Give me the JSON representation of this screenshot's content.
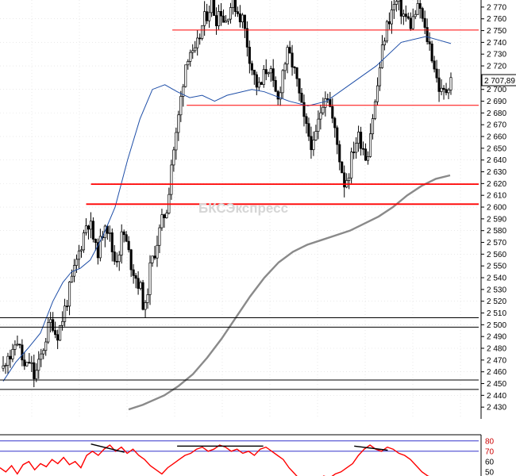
{
  "watermark": "БКСЭкспресс",
  "current_price_label": "2 707,89",
  "chart_data": [
    {
      "type": "candlestick",
      "ylim": [
        2420,
        2776
      ],
      "y_ticks": [
        "2 430",
        "2 440",
        "2 450",
        "2 460",
        "2 470",
        "2 480",
        "2 490",
        "2 500",
        "2 510",
        "2 520",
        "2 530",
        "2 540",
        "2 550",
        "2 560",
        "2 570",
        "2 580",
        "2 590",
        "2 600",
        "2 610",
        "2 620",
        "2 630",
        "2 640",
        "2 650",
        "2 660",
        "2 670",
        "2 680",
        "2 690",
        "2 700",
        "2 710",
        "2 720",
        "2 730",
        "2 740",
        "2 750",
        "2 760",
        "2 770"
      ],
      "y_tick_values": [
        2430,
        2440,
        2450,
        2460,
        2470,
        2480,
        2490,
        2500,
        2510,
        2520,
        2530,
        2540,
        2550,
        2560,
        2570,
        2580,
        2590,
        2600,
        2610,
        2620,
        2630,
        2640,
        2650,
        2660,
        2670,
        2680,
        2690,
        2700,
        2710,
        2720,
        2730,
        2740,
        2750,
        2760,
        2770
      ],
      "last_value": 2707.89,
      "price_path": [
        2463,
        2478,
        2470,
        2490,
        2475,
        2460,
        2470,
        2455,
        2465,
        2480,
        2495,
        2505,
        2490,
        2500,
        2515,
        2530,
        2545,
        2560,
        2575,
        2590,
        2580,
        2560,
        2570,
        2590,
        2575,
        2555,
        2560,
        2580,
        2565,
        2550,
        2540,
        2530,
        2510,
        2545,
        2560,
        2575,
        2590,
        2600,
        2640,
        2660,
        2690,
        2720,
        2735,
        2725,
        2740,
        2755,
        2765,
        2775,
        2760,
        2770,
        2755,
        2770,
        2775,
        2765,
        2760,
        2740,
        2720,
        2705,
        2700,
        2715,
        2720,
        2700,
        2690,
        2715,
        2730,
        2725,
        2710,
        2690,
        2670,
        2660,
        2650,
        2670,
        2690,
        2700,
        2680,
        2660,
        2640,
        2620,
        2630,
        2650,
        2660,
        2655,
        2640,
        2670,
        2690,
        2720,
        2745,
        2760,
        2770,
        2775,
        2765,
        2760,
        2755,
        2765,
        2770,
        2750,
        2740,
        2725,
        2705,
        2695,
        2700,
        2712
      ],
      "ma_short": [
        [
          0,
          2452
        ],
        [
          10,
          2468
        ],
        [
          20,
          2480
        ],
        [
          30,
          2493
        ],
        [
          40,
          2520
        ],
        [
          48,
          2536
        ],
        [
          55,
          2545
        ],
        [
          62,
          2548
        ],
        [
          70,
          2555
        ],
        [
          80,
          2575
        ],
        [
          90,
          2600
        ],
        [
          100,
          2640
        ],
        [
          110,
          2675
        ],
        [
          120,
          2700
        ],
        [
          130,
          2704
        ],
        [
          140,
          2698
        ],
        [
          150,
          2693
        ],
        [
          160,
          2695
        ],
        [
          170,
          2690
        ],
        [
          180,
          2695
        ],
        [
          200,
          2700
        ],
        [
          210,
          2698
        ],
        [
          230,
          2690
        ],
        [
          245,
          2686
        ],
        [
          260,
          2690
        ],
        [
          280,
          2705
        ],
        [
          300,
          2720
        ],
        [
          320,
          2740
        ],
        [
          340,
          2745
        ],
        [
          350,
          2742
        ],
        [
          360,
          2739
        ]
      ],
      "ma_long": [
        [
          25,
          2428
        ],
        [
          35,
          2432
        ],
        [
          50,
          2440
        ],
        [
          60,
          2448
        ],
        [
          70,
          2458
        ],
        [
          80,
          2472
        ],
        [
          90,
          2488
        ],
        [
          100,
          2506
        ],
        [
          110,
          2524
        ],
        [
          120,
          2540
        ],
        [
          130,
          2553
        ],
        [
          140,
          2562
        ],
        [
          150,
          2568
        ],
        [
          160,
          2572
        ],
        [
          170,
          2576
        ],
        [
          180,
          2580
        ],
        [
          190,
          2586
        ],
        [
          200,
          2592
        ],
        [
          210,
          2600
        ],
        [
          220,
          2610
        ],
        [
          230,
          2618
        ],
        [
          240,
          2624
        ],
        [
          250,
          2627
        ]
      ],
      "levels": [
        {
          "value": 2750.5,
          "color": "#ff0000",
          "from": 0.36
        },
        {
          "value": 2686.5,
          "color": "#ff0000",
          "from": 0.39
        },
        {
          "value": 2619.5,
          "color": "#ff0000",
          "from": 0.19
        },
        {
          "value": 2602.5,
          "color": "#ff0000",
          "from": 0.18
        },
        {
          "value": 2506,
          "color": "#000000",
          "from": 0.0
        },
        {
          "value": 2498,
          "color": "#000000",
          "from": 0.0
        },
        {
          "value": 2453,
          "color": "#000000",
          "from": 0.0
        },
        {
          "value": 2445,
          "color": "#000000",
          "from": 0.0
        }
      ]
    },
    {
      "type": "line",
      "y_ticks": [
        "80",
        "70",
        "60",
        "50"
      ],
      "y_tick_values": [
        80,
        70,
        60,
        50
      ],
      "levels": [
        80,
        70
      ],
      "series": [
        {
          "color": "#ff0000",
          "values": [
            54,
            50,
            56,
            48,
            57,
            60,
            52,
            58,
            55,
            62,
            58,
            64,
            57,
            60,
            54,
            66,
            70,
            66,
            72,
            76,
            70,
            74,
            68,
            72,
            66,
            62,
            56,
            52,
            48,
            54,
            58,
            62,
            66,
            68,
            72,
            74,
            70,
            72,
            76,
            74,
            70,
            72,
            68,
            70,
            66,
            72,
            74,
            70,
            66,
            62,
            54,
            48,
            42,
            40,
            38,
            42,
            46,
            44,
            48,
            50,
            54,
            58,
            66,
            72,
            76,
            72,
            70,
            74,
            72,
            68,
            66,
            62,
            56,
            50,
            46,
            44,
            42,
            40,
            38
          ]
        }
      ],
      "divergence_lines": [
        {
          "x": [
            0.19,
            0.26
          ],
          "y": [
            77,
            69
          ]
        },
        {
          "x": [
            0.37,
            0.55
          ],
          "y": [
            75,
            75
          ]
        },
        {
          "x": [
            0.74,
            0.81
          ],
          "y": [
            75,
            71
          ]
        }
      ]
    }
  ]
}
